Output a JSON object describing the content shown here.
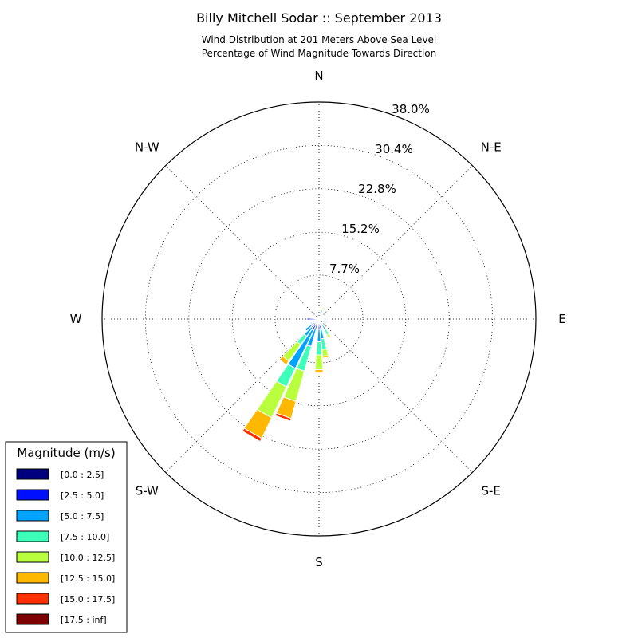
{
  "chart_data": {
    "type": "windrose",
    "title": "Billy Mitchell Sodar :: September 2013",
    "subtitle_lines": [
      "Wind Distribution at 201 Meters Above Sea Level",
      "Percentage of Wind Magnitude Towards Direction"
    ],
    "radial_ticks": [
      7.7,
      15.2,
      22.8,
      30.4,
      38.0
    ],
    "radial_tick_labels": [
      "7.7%",
      "15.2%",
      "22.8%",
      "30.4%",
      "38.0%"
    ],
    "rmax": 38.0,
    "directions": [
      {
        "label": "N",
        "angle": 0
      },
      {
        "label": "N-E",
        "angle": 45
      },
      {
        "label": "E",
        "angle": 90
      },
      {
        "label": "S-E",
        "angle": 135
      },
      {
        "label": "S",
        "angle": 180
      },
      {
        "label": "S-W",
        "angle": 225
      },
      {
        "label": "W",
        "angle": 270
      },
      {
        "label": "N-W",
        "angle": 315
      }
    ],
    "legend": {
      "title": "Magnitude (m/s)",
      "bins": [
        {
          "label": "[0.0 : 2.5]",
          "color": "#00007f"
        },
        {
          "label": "[2.5 : 5.0]",
          "color": "#0010ff"
        },
        {
          "label": "[5.0 : 7.5]",
          "color": "#00a4ff"
        },
        {
          "label": "[7.5 : 10.0]",
          "color": "#3dffb9"
        },
        {
          "label": "[10.0 : 12.5]",
          "color": "#b9ff3d"
        },
        {
          "label": "[12.5 : 15.0]",
          "color": "#ffb800"
        },
        {
          "label": "[15.0 : 17.5]",
          "color": "#ff3000"
        },
        {
          "label": "[17.5 : inf]",
          "color": "#7f0000"
        }
      ]
    },
    "sector_width_deg": 10,
    "series": [
      {
        "direction": 20,
        "values": [
          0.2,
          0.4,
          0.5,
          0.6,
          0.4,
          0,
          0,
          0
        ]
      },
      {
        "direction": 40,
        "values": [
          0.2,
          0.3,
          0.3,
          0,
          0,
          0,
          0,
          0
        ]
      },
      {
        "direction": 90,
        "values": [
          0.3,
          0.5,
          0.6,
          0,
          0,
          0,
          0,
          0
        ]
      },
      {
        "direction": 120,
        "values": [
          0.2,
          0.4,
          0.6,
          0.3,
          0,
          0,
          0,
          0
        ]
      },
      {
        "direction": 150,
        "values": [
          0.3,
          0.6,
          1.2,
          1.0,
          0.5,
          0.2,
          0,
          0
        ]
      },
      {
        "direction": 170,
        "values": [
          0.6,
          1.1,
          1.8,
          1.9,
          1.2,
          0.3,
          0,
          0
        ]
      },
      {
        "direction": 180,
        "values": [
          0.6,
          1.2,
          2.2,
          2.3,
          2.6,
          0.6,
          0.1,
          0
        ]
      },
      {
        "direction": 200,
        "values": [
          0.4,
          1.4,
          3.2,
          4.5,
          5.5,
          3.1,
          0.5,
          0.1
        ]
      },
      {
        "direction": 210,
        "values": [
          0.5,
          1.7,
          7.4,
          3.6,
          6.0,
          4.0,
          0.6,
          0
        ]
      },
      {
        "direction": 220,
        "values": [
          0.6,
          1.3,
          1.8,
          1.8,
          3.6,
          0.8,
          0,
          0
        ]
      },
      {
        "direction": 230,
        "values": [
          0.5,
          1.2,
          1.3,
          0,
          0,
          0,
          0,
          0
        ]
      },
      {
        "direction": 240,
        "values": [
          0.4,
          1.0,
          0.2,
          0,
          0,
          0,
          0,
          0
        ]
      },
      {
        "direction": 260,
        "values": [
          0.2,
          0.5,
          0,
          0,
          0,
          0,
          0,
          0
        ]
      },
      {
        "direction": 270,
        "values": [
          0.4,
          1.7,
          0,
          0,
          0,
          0,
          0,
          0
        ]
      },
      {
        "direction": 330,
        "values": [
          0.3,
          0.1,
          0,
          0,
          0,
          0,
          0,
          0
        ]
      }
    ]
  }
}
